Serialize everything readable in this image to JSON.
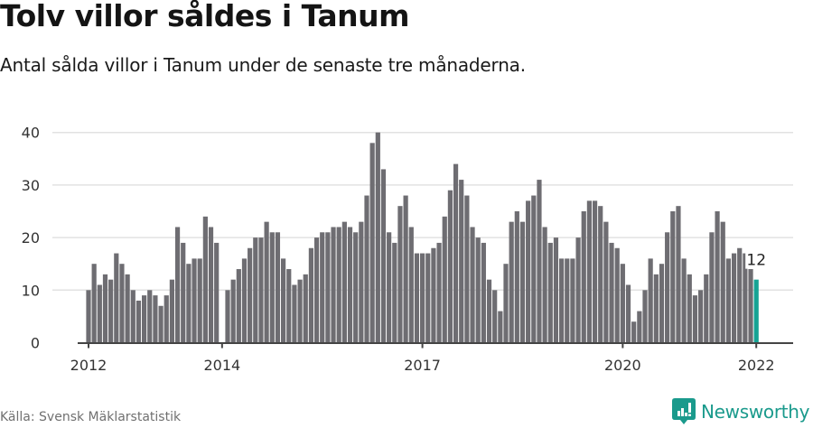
{
  "header": {
    "title": "Tolv villor såldes i Tanum",
    "subtitle": "Antal sålda villor i Tanum under de senaste tre månaderna."
  },
  "footer": {
    "source": "Källa: Svensk Mäklarstatistik",
    "brand": "Newsworthy"
  },
  "colors": {
    "bar": "#6e6d72",
    "highlight": "#16a394",
    "grid": "#e2e2e2",
    "axis": "#444444",
    "brand": "#1a9a8c"
  },
  "chart_data": {
    "type": "bar",
    "title": "Tolv villor såldes i Tanum",
    "subtitle": "Antal sålda villor i Tanum under de senaste tre månaderna.",
    "xlabel": "",
    "ylabel": "",
    "ylim": [
      0,
      40
    ],
    "yticks": [
      0,
      10,
      20,
      30,
      40
    ],
    "xtick_labels": [
      "2012",
      "2014",
      "2017",
      "2020",
      "2022"
    ],
    "xtick_index": [
      0,
      24,
      60,
      96,
      120
    ],
    "grid": true,
    "legend": null,
    "annotation": {
      "index": 120,
      "label": "12"
    },
    "start": "2012-01",
    "end": "2022-01",
    "frequency": "monthly",
    "series": [
      {
        "name": "Sålda villor",
        "values": [
          10,
          15,
          11,
          13,
          12,
          17,
          15,
          13,
          10,
          8,
          9,
          10,
          9,
          7,
          9,
          12,
          22,
          19,
          15,
          16,
          16,
          24,
          22,
          19,
          0,
          10,
          12,
          14,
          16,
          18,
          20,
          20,
          23,
          21,
          21,
          16,
          14,
          11,
          12,
          13,
          18,
          20,
          21,
          21,
          22,
          22,
          23,
          22,
          21,
          23,
          28,
          38,
          40,
          33,
          21,
          19,
          26,
          28,
          22,
          17,
          17,
          17,
          18,
          19,
          24,
          29,
          34,
          31,
          28,
          22,
          20,
          19,
          12,
          10,
          6,
          15,
          23,
          25,
          23,
          27,
          28,
          31,
          22,
          19,
          20,
          16,
          16,
          16,
          20,
          25,
          27,
          27,
          26,
          23,
          19,
          18,
          15,
          11,
          4,
          6,
          10,
          16,
          13,
          15,
          21,
          25,
          26,
          16,
          13,
          9,
          10,
          13,
          21,
          25,
          23,
          16,
          17,
          18,
          17,
          14,
          12
        ]
      }
    ]
  }
}
